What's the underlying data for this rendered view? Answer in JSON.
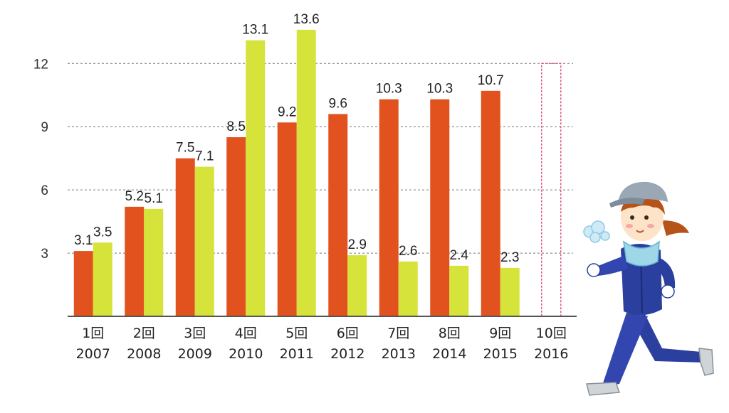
{
  "chart_data": {
    "type": "bar",
    "categories": [
      {
        "round": "1回",
        "year": "2007"
      },
      {
        "round": "2回",
        "year": "2008"
      },
      {
        "round": "3回",
        "year": "2009"
      },
      {
        "round": "4回",
        "year": "2010"
      },
      {
        "round": "5回",
        "year": "2011"
      },
      {
        "round": "6回",
        "year": "2012"
      },
      {
        "round": "7回",
        "year": "2013"
      },
      {
        "round": "8回",
        "year": "2014"
      },
      {
        "round": "9回",
        "year": "2015"
      },
      {
        "round": "10回",
        "year": "2016"
      }
    ],
    "series": [
      {
        "color": "#e2521f",
        "values": [
          3.1,
          5.2,
          7.5,
          8.5,
          9.2,
          9.6,
          10.3,
          10.3,
          10.7,
          null
        ]
      },
      {
        "color": "#d6e33a",
        "values": [
          3.5,
          5.1,
          7.1,
          13.1,
          13.6,
          2.9,
          2.6,
          2.4,
          2.3,
          null
        ]
      }
    ],
    "placeholder_category": "10回",
    "placeholder_color": "#e35a7a",
    "yticks": [
      3,
      6,
      9,
      12
    ],
    "ylim": [
      0,
      14
    ],
    "grid": true,
    "title": "",
    "xlabel": "",
    "ylabel": ""
  },
  "illustration": {
    "name": "jogging-woman-illustration",
    "cap_color": "#9aa7b4",
    "jacket_color": "#2b3f9e",
    "towel_color": "#9fd6e8",
    "shoe_color": "#cfd4d8",
    "hair_color": "#b5531b"
  }
}
